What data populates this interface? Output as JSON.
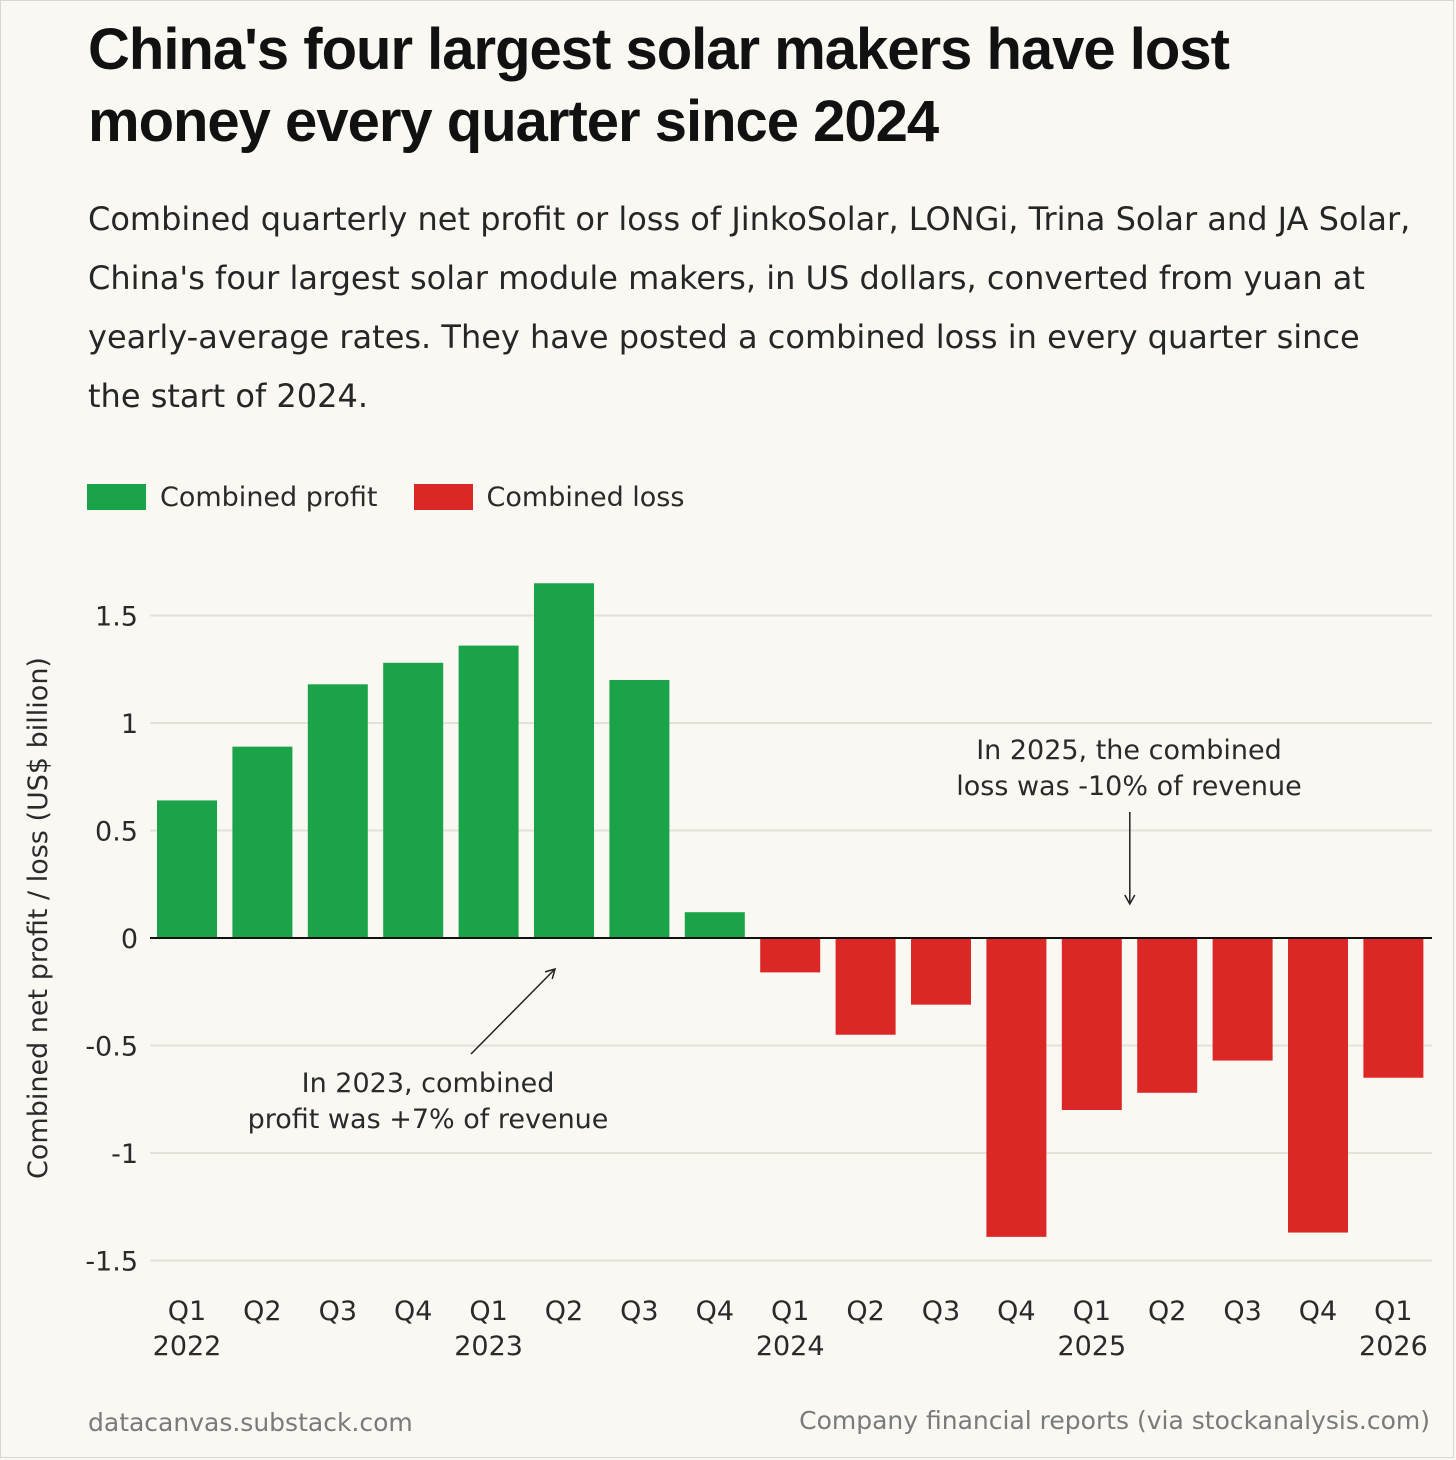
{
  "header": {
    "title": "China's four largest solar makers have lost money every quarter since 2024",
    "subtitle": "Combined quarterly net profit or loss of JinkoSolar, LONGi, Trina Solar and JA Solar, China's four largest solar module makers, in US dollars, converted from yuan at yearly-average rates. They have posted a combined loss in every quarter since the start of 2024."
  },
  "legend": {
    "items": [
      {
        "label": "Combined profit",
        "color": "#1ba34a"
      },
      {
        "label": "Combined loss",
        "color": "#dc2727"
      }
    ]
  },
  "footer": {
    "left": "datacanvas.substack.com",
    "right": "Company financial reports (via stockanalysis.com)"
  },
  "chart_data": {
    "type": "bar",
    "ylabel": "Combined net profit / loss (US$ billion)",
    "ylim": [
      -1.5,
      1.65
    ],
    "yticks": [
      1.5,
      1,
      0.5,
      0,
      -0.5,
      -1,
      -1.5
    ],
    "ytick_labels": [
      "1.5",
      "1",
      "0.5",
      "0",
      "-0.5",
      "-1",
      "-1.5"
    ],
    "grid": true,
    "categories": [
      "Q1 2022",
      "Q2 2022",
      "Q3 2022",
      "Q4 2022",
      "Q1 2023",
      "Q2 2023",
      "Q3 2023",
      "Q4 2023",
      "Q1 2024",
      "Q2 2024",
      "Q3 2024",
      "Q4 2024",
      "Q1 2025",
      "Q2 2025",
      "Q3 2025",
      "Q4 2025",
      "Q1 2026"
    ],
    "tick_quarters": [
      "Q1",
      "Q2",
      "Q3",
      "Q4",
      "Q1",
      "Q2",
      "Q3",
      "Q4",
      "Q1",
      "Q2",
      "Q3",
      "Q4",
      "Q1",
      "Q2",
      "Q3",
      "Q4",
      "Q1"
    ],
    "tick_years": [
      "2022",
      "",
      "",
      "",
      "2023",
      "",
      "",
      "",
      "2024",
      "",
      "",
      "",
      "2025",
      "",
      "",
      "",
      "2026"
    ],
    "values": [
      0.64,
      0.89,
      1.18,
      1.28,
      1.36,
      1.65,
      1.2,
      0.12,
      -0.16,
      -0.45,
      -0.31,
      -1.39,
      -0.8,
      -0.72,
      -0.57,
      -1.37,
      -0.65
    ],
    "colors": {
      "profit": "#1ba34a",
      "loss": "#dc2727"
    },
    "annotations": [
      {
        "text_lines": [
          "In 2023, combined",
          "profit was +7% of revenue"
        ],
        "target_category": "Q2 2023"
      },
      {
        "text_lines": [
          "In 2025, the combined",
          "loss was -10% of revenue"
        ],
        "target_category": "Q1 2025"
      }
    ]
  }
}
